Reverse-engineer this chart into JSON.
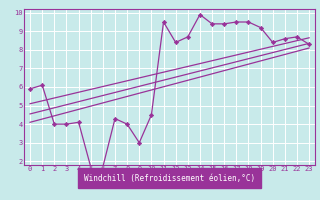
{
  "bg_color": "#c8eaea",
  "grid_color": "#ffffff",
  "line_color": "#993399",
  "border_color": "#7b3f7b",
  "xlabel_bg": "#7b3f99",
  "marker_color": "#993399",
  "xlabel": "Windchill (Refroidissement éolien,°C)",
  "xlim": [
    -0.5,
    23.5
  ],
  "ylim": [
    1.8,
    10.2
  ],
  "xticks": [
    0,
    1,
    2,
    3,
    4,
    5,
    6,
    7,
    8,
    9,
    10,
    11,
    12,
    13,
    14,
    15,
    16,
    17,
    18,
    19,
    20,
    21,
    22,
    23
  ],
  "yticks": [
    2,
    3,
    4,
    5,
    6,
    7,
    8,
    9,
    10
  ],
  "main_x": [
    0,
    1,
    2,
    3,
    4,
    5,
    6,
    7,
    8,
    9,
    10,
    11,
    12,
    13,
    14,
    15,
    16,
    17,
    18,
    19,
    20,
    21,
    22,
    23
  ],
  "main_y": [
    5.9,
    6.1,
    4.0,
    4.0,
    4.1,
    1.7,
    1.7,
    4.3,
    4.0,
    3.0,
    4.5,
    9.5,
    8.4,
    8.7,
    9.9,
    9.4,
    9.4,
    9.5,
    9.5,
    9.2,
    8.4,
    8.6,
    8.7,
    8.3
  ],
  "line1_x": [
    0,
    23
  ],
  "line1_y": [
    4.1,
    8.1
  ],
  "line2_x": [
    0,
    23
  ],
  "line2_y": [
    4.55,
    8.35
  ],
  "line3_x": [
    0,
    23
  ],
  "line3_y": [
    5.1,
    8.65
  ],
  "tick_fontsize": 5.0,
  "xlabel_fontsize": 5.5
}
